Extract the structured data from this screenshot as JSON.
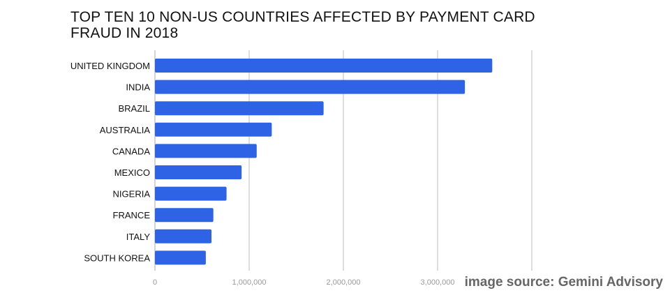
{
  "chart_data": {
    "type": "bar",
    "orientation": "horizontal",
    "title_lines": [
      "TOP TEN 10 NON-US COUNTRIES AFFECTED BY PAYMENT CARD",
      "FRAUD IN 2018"
    ],
    "categories": [
      "UNITED KINGDOM",
      "INDIA",
      "BRAZIL",
      "AUSTRALIA",
      "CANADA",
      "MEXICO",
      "NIGERIA",
      "FRANCE",
      "ITALY",
      "SOUTH KOREA"
    ],
    "values": [
      3580000,
      3290000,
      1790000,
      1240000,
      1080000,
      920000,
      760000,
      620000,
      600000,
      540000
    ],
    "xlim": [
      0,
      4000000
    ],
    "xticks": [
      0,
      1000000,
      2000000,
      3000000,
      4000000
    ],
    "xtick_labels": [
      "0",
      "1,000,000",
      "2,000,000",
      "3,000,000",
      ""
    ],
    "grid": true,
    "bar_color": "#2e63e6",
    "grid_color": "#cccccc"
  },
  "credit": "image source: Gemini Advisory"
}
